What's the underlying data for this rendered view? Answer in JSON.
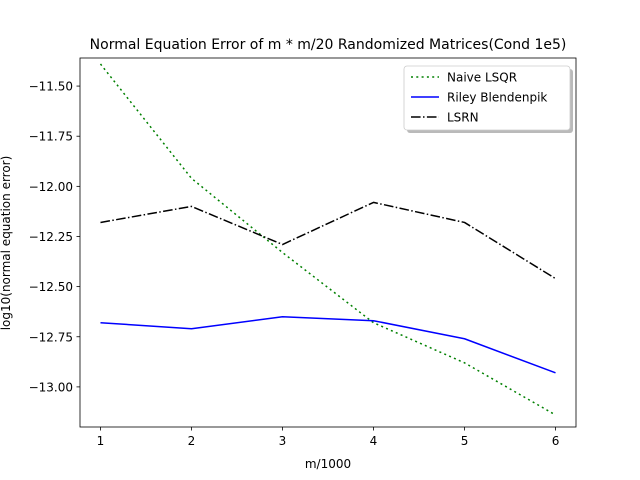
{
  "chart_data": {
    "type": "line",
    "title": "Normal Equation Error of m * m/20 Randomized Matrices(Cond 1e5)",
    "xlabel": "m/1000",
    "ylabel": "log10(normal equation error)",
    "x": [
      1,
      2,
      3,
      4,
      5,
      6
    ],
    "xlim": [
      0.775,
      6.225
    ],
    "ylim": [
      -13.2,
      -11.36
    ],
    "xticks": [
      1,
      2,
      3,
      4,
      5,
      6
    ],
    "xtick_labels": [
      "1",
      "2",
      "3",
      "4",
      "5",
      "6"
    ],
    "yticks": [
      -11.5,
      -11.75,
      -12.0,
      -12.25,
      -12.5,
      -12.75,
      -13.0
    ],
    "ytick_labels": [
      "−11.50",
      "−11.75",
      "−12.00",
      "−12.25",
      "−12.50",
      "−12.75",
      "−13.00"
    ],
    "grid": false,
    "legend_position": "top-right",
    "series": [
      {
        "name": "Naive LSQR",
        "color": "#008000",
        "style": "dotted",
        "values": [
          -11.39,
          -11.96,
          -12.33,
          -12.68,
          -12.88,
          -13.14
        ]
      },
      {
        "name": "Riley Blendenpik",
        "color": "#0000ff",
        "style": "solid",
        "values": [
          -12.68,
          -12.71,
          -12.65,
          -12.67,
          -12.76,
          -12.93
        ]
      },
      {
        "name": "LSRN",
        "color": "#000000",
        "style": "dashdot",
        "values": [
          -12.18,
          -12.1,
          -12.29,
          -12.08,
          -12.18,
          -12.46
        ]
      }
    ]
  }
}
